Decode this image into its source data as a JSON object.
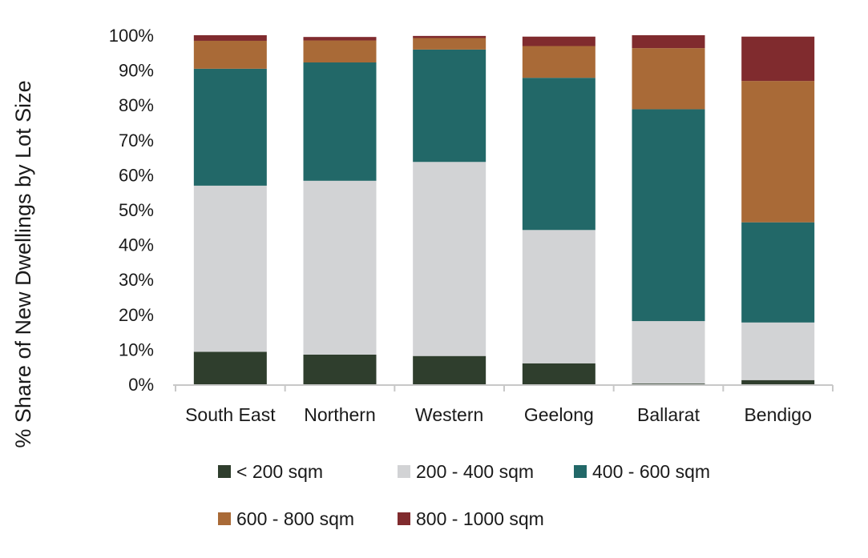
{
  "chart_data": {
    "type": "bar",
    "stacked": true,
    "percent_stacked": true,
    "title": "",
    "xlabel": "",
    "ylabel": "% Share of New Dwellings by Lot Size",
    "ylim": [
      0,
      100
    ],
    "yticks": [
      0,
      10,
      20,
      30,
      40,
      50,
      60,
      70,
      80,
      90,
      100
    ],
    "ytick_labels": [
      "0%",
      "10%",
      "20%",
      "30%",
      "40%",
      "50%",
      "60%",
      "70%",
      "80%",
      "90%",
      "100%"
    ],
    "grid": false,
    "legend_position": "bottom",
    "categories": [
      "South East",
      "Northern",
      "Western",
      "Geelong",
      "Ballarat",
      "Bendigo"
    ],
    "series": [
      {
        "name": "< 200 sqm",
        "color": "#2f3e2d",
        "values": [
          9.3,
          8.5,
          8.1,
          6.0,
          0.2,
          1.2
        ]
      },
      {
        "name": "200 - 400 sqm",
        "color": "#d2d3d5",
        "values": [
          47.6,
          49.8,
          55.6,
          38.2,
          17.9,
          16.5
        ]
      },
      {
        "name": "400 - 600 sqm",
        "color": "#226868",
        "values": [
          33.5,
          33.9,
          32.2,
          43.6,
          60.7,
          28.7
        ]
      },
      {
        "name": "600 - 800 sqm",
        "color": "#a96a37",
        "values": [
          8.0,
          6.3,
          3.3,
          9.1,
          17.5,
          40.5
        ]
      },
      {
        "name": "800 - 1000 sqm",
        "color": "#802b2e",
        "values": [
          1.6,
          1.0,
          0.6,
          2.7,
          3.7,
          12.7
        ]
      }
    ]
  }
}
